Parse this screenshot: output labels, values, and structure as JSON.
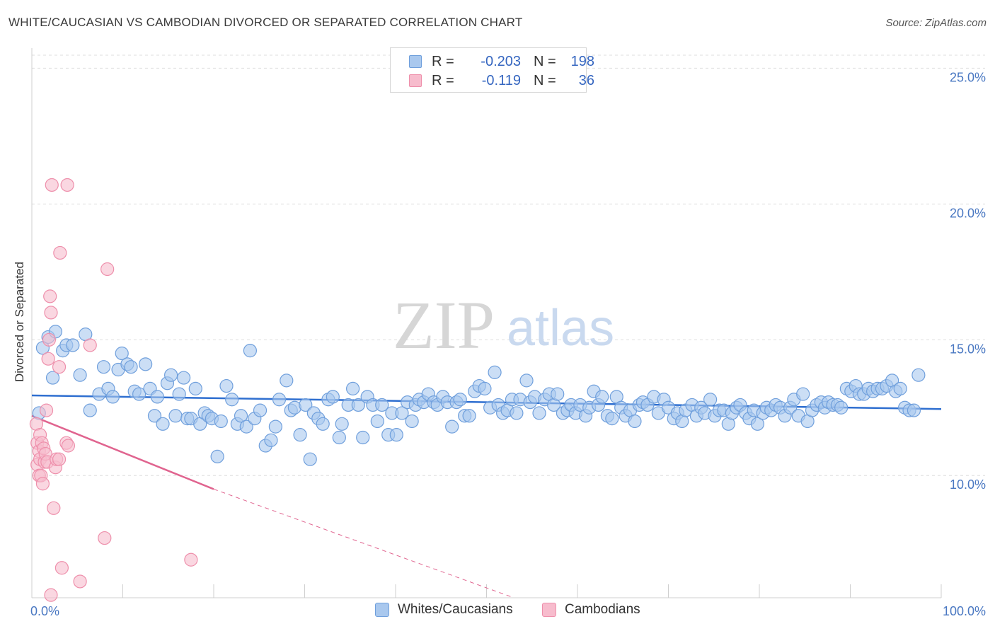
{
  "title": "WHITE/CAUCASIAN VS CAMBODIAN DIVORCED OR SEPARATED CORRELATION CHART",
  "source": "Source: ZipAtlas.com",
  "watermark": {
    "zip": "ZIP",
    "atlas": "atlas"
  },
  "colors": {
    "blue_fill": "#a9c8ee",
    "blue_stroke": "#6f9fdc",
    "blue_line": "#2f6fd0",
    "pink_fill": "#f7bccd",
    "pink_stroke": "#ee8fab",
    "pink_line": "#e0648f",
    "grid": "#dddddd",
    "tick_text": "#4a78c2"
  },
  "legend": {
    "rows": [
      {
        "r_label": "R =",
        "r_value": "-0.203",
        "n_label": "N =",
        "n_value": "198"
      },
      {
        "r_label": "R =",
        "r_value": "-0.119",
        "n_label": "N =",
        "n_value": "36"
      }
    ]
  },
  "bottom_legend": {
    "series1": "Whites/Caucasians",
    "series2": "Cambodians"
  },
  "chart_data": {
    "type": "scatter",
    "ylabel": "Divorced or Separated",
    "xlim": [
      0,
      100
    ],
    "ylim": [
      5.5,
      26.0
    ],
    "y_ticks": [
      {
        "value": 10,
        "label": "10.0%"
      },
      {
        "value": 15,
        "label": "15.0%"
      },
      {
        "value": 20,
        "label": "20.0%"
      },
      {
        "value": 25,
        "label": "25.0%"
      }
    ],
    "x_ticks": [
      {
        "value": 0,
        "label": "0.0%"
      },
      {
        "value": 100,
        "label": "100.0%"
      }
    ],
    "legend_position": "top-center",
    "series": [
      {
        "name": "Whites/Caucasians",
        "trend": {
          "x": [
            0,
            100
          ],
          "y": [
            12.95,
            12.45
          ],
          "dashed_extension": false
        },
        "points": [
          [
            0.8,
            12.3
          ],
          [
            1.2,
            14.7
          ],
          [
            1.8,
            15.1
          ],
          [
            2.3,
            13.6
          ],
          [
            2.6,
            15.3
          ],
          [
            3.4,
            14.6
          ],
          [
            3.8,
            14.8
          ],
          [
            4.5,
            14.8
          ],
          [
            5.3,
            13.7
          ],
          [
            5.9,
            15.2
          ],
          [
            6.4,
            12.4
          ],
          [
            7.4,
            13.0
          ],
          [
            7.9,
            14.0
          ],
          [
            8.4,
            13.2
          ],
          [
            8.9,
            12.9
          ],
          [
            9.5,
            13.9
          ],
          [
            9.9,
            14.5
          ],
          [
            10.5,
            14.1
          ],
          [
            10.9,
            14.0
          ],
          [
            11.3,
            13.1
          ],
          [
            11.8,
            13.0
          ],
          [
            12.5,
            14.1
          ],
          [
            13.0,
            13.2
          ],
          [
            13.5,
            12.2
          ],
          [
            13.8,
            12.9
          ],
          [
            14.4,
            11.9
          ],
          [
            14.9,
            13.4
          ],
          [
            15.3,
            13.7
          ],
          [
            15.8,
            12.2
          ],
          [
            16.2,
            13.0
          ],
          [
            16.7,
            13.6
          ],
          [
            17.1,
            12.1
          ],
          [
            17.5,
            12.1
          ],
          [
            18.0,
            13.2
          ],
          [
            18.5,
            11.9
          ],
          [
            19.0,
            12.3
          ],
          [
            19.4,
            12.2
          ],
          [
            19.8,
            12.1
          ],
          [
            20.4,
            10.7
          ],
          [
            20.8,
            12.0
          ],
          [
            21.4,
            13.3
          ],
          [
            22.0,
            12.8
          ],
          [
            22.6,
            11.9
          ],
          [
            23.0,
            12.2
          ],
          [
            23.6,
            11.8
          ],
          [
            24.0,
            14.6
          ],
          [
            24.5,
            12.1
          ],
          [
            25.1,
            12.4
          ],
          [
            25.7,
            11.1
          ],
          [
            26.3,
            11.3
          ],
          [
            26.8,
            11.8
          ],
          [
            27.2,
            12.8
          ],
          [
            28.0,
            13.5
          ],
          [
            28.5,
            12.4
          ],
          [
            28.9,
            12.5
          ],
          [
            29.5,
            11.5
          ],
          [
            30.1,
            12.6
          ],
          [
            30.6,
            10.6
          ],
          [
            31.0,
            12.3
          ],
          [
            31.5,
            12.1
          ],
          [
            32.0,
            11.9
          ],
          [
            32.6,
            12.8
          ],
          [
            33.1,
            12.9
          ],
          [
            33.8,
            11.4
          ],
          [
            34.1,
            11.9
          ],
          [
            34.8,
            12.6
          ],
          [
            35.3,
            13.2
          ],
          [
            35.9,
            12.6
          ],
          [
            36.4,
            11.4
          ],
          [
            36.9,
            12.9
          ],
          [
            37.5,
            12.6
          ],
          [
            38.0,
            12.0
          ],
          [
            38.5,
            12.6
          ],
          [
            39.2,
            11.5
          ],
          [
            39.6,
            12.3
          ],
          [
            40.1,
            11.5
          ],
          [
            40.7,
            12.3
          ],
          [
            41.3,
            12.7
          ],
          [
            41.8,
            12.0
          ],
          [
            42.2,
            12.6
          ],
          [
            42.6,
            12.8
          ],
          [
            43.1,
            12.7
          ],
          [
            43.6,
            13.0
          ],
          [
            44.2,
            12.7
          ],
          [
            44.6,
            12.6
          ],
          [
            45.2,
            12.9
          ],
          [
            45.7,
            12.7
          ],
          [
            46.2,
            11.8
          ],
          [
            46.7,
            12.7
          ],
          [
            47.1,
            12.8
          ],
          [
            47.6,
            12.2
          ],
          [
            48.1,
            12.2
          ],
          [
            48.7,
            13.1
          ],
          [
            49.2,
            13.3
          ],
          [
            49.8,
            13.2
          ],
          [
            50.4,
            12.5
          ],
          [
            50.9,
            13.8
          ],
          [
            51.3,
            12.6
          ],
          [
            51.8,
            12.3
          ],
          [
            52.3,
            12.4
          ],
          [
            52.8,
            12.8
          ],
          [
            53.3,
            12.3
          ],
          [
            53.7,
            12.8
          ],
          [
            54.4,
            13.5
          ],
          [
            54.8,
            12.7
          ],
          [
            55.3,
            12.9
          ],
          [
            55.8,
            12.3
          ],
          [
            56.4,
            12.8
          ],
          [
            56.9,
            13.0
          ],
          [
            57.4,
            12.6
          ],
          [
            57.8,
            13.0
          ],
          [
            58.4,
            12.3
          ],
          [
            58.9,
            12.4
          ],
          [
            59.3,
            12.6
          ],
          [
            59.8,
            12.3
          ],
          [
            60.3,
            12.6
          ],
          [
            60.9,
            12.2
          ],
          [
            61.3,
            12.5
          ],
          [
            61.8,
            13.1
          ],
          [
            62.3,
            12.6
          ],
          [
            62.7,
            12.9
          ],
          [
            63.3,
            12.2
          ],
          [
            63.8,
            12.1
          ],
          [
            64.3,
            12.9
          ],
          [
            64.8,
            12.5
          ],
          [
            65.3,
            12.2
          ],
          [
            65.8,
            12.4
          ],
          [
            66.3,
            12.0
          ],
          [
            66.8,
            12.6
          ],
          [
            67.2,
            12.7
          ],
          [
            67.7,
            12.6
          ],
          [
            68.4,
            12.9
          ],
          [
            68.9,
            12.3
          ],
          [
            69.5,
            12.8
          ],
          [
            70.0,
            12.5
          ],
          [
            70.6,
            12.1
          ],
          [
            71.0,
            12.3
          ],
          [
            71.5,
            12.0
          ],
          [
            71.9,
            12.4
          ],
          [
            72.6,
            12.6
          ],
          [
            73.1,
            12.2
          ],
          [
            73.6,
            12.5
          ],
          [
            74.0,
            12.3
          ],
          [
            74.6,
            12.8
          ],
          [
            75.1,
            12.2
          ],
          [
            75.6,
            12.4
          ],
          [
            76.1,
            12.4
          ],
          [
            76.6,
            11.9
          ],
          [
            77.0,
            12.3
          ],
          [
            77.5,
            12.5
          ],
          [
            77.9,
            12.6
          ],
          [
            78.5,
            12.3
          ],
          [
            78.9,
            12.1
          ],
          [
            79.4,
            12.4
          ],
          [
            79.8,
            11.9
          ],
          [
            80.4,
            12.3
          ],
          [
            80.8,
            12.5
          ],
          [
            81.3,
            12.4
          ],
          [
            81.8,
            12.6
          ],
          [
            82.3,
            12.5
          ],
          [
            82.8,
            12.2
          ],
          [
            83.4,
            12.5
          ],
          [
            83.8,
            12.8
          ],
          [
            84.3,
            12.2
          ],
          [
            84.8,
            13.0
          ],
          [
            85.3,
            12.0
          ],
          [
            85.8,
            12.4
          ],
          [
            86.3,
            12.6
          ],
          [
            86.8,
            12.7
          ],
          [
            87.2,
            12.5
          ],
          [
            87.6,
            12.7
          ],
          [
            88.1,
            12.6
          ],
          [
            88.6,
            12.6
          ],
          [
            89.0,
            12.5
          ],
          [
            89.6,
            13.2
          ],
          [
            90.1,
            13.1
          ],
          [
            90.6,
            13.3
          ],
          [
            91.0,
            13.0
          ],
          [
            91.5,
            13.0
          ],
          [
            92.0,
            13.2
          ],
          [
            92.5,
            13.1
          ],
          [
            93.0,
            13.2
          ],
          [
            93.5,
            13.2
          ],
          [
            94.0,
            13.3
          ],
          [
            94.6,
            13.5
          ],
          [
            95.0,
            13.1
          ],
          [
            95.5,
            13.2
          ],
          [
            96.0,
            12.5
          ],
          [
            96.5,
            12.4
          ],
          [
            97.0,
            12.4
          ],
          [
            97.5,
            13.7
          ]
        ]
      },
      {
        "name": "Cambodians",
        "trend": {
          "x": [
            0,
            20
          ],
          "y": [
            12.2,
            9.5
          ],
          "dashed_to": {
            "x": 53,
            "y": 5.5
          }
        },
        "points": [
          [
            0.5,
            11.9
          ],
          [
            0.6,
            11.2
          ],
          [
            0.6,
            10.4
          ],
          [
            0.8,
            10.9
          ],
          [
            0.8,
            10.0
          ],
          [
            0.9,
            11.5
          ],
          [
            0.9,
            10.6
          ],
          [
            1.0,
            10.0
          ],
          [
            1.1,
            11.2
          ],
          [
            1.2,
            9.7
          ],
          [
            1.3,
            11.0
          ],
          [
            1.4,
            10.5
          ],
          [
            1.5,
            10.8
          ],
          [
            1.6,
            12.4
          ],
          [
            1.7,
            10.5
          ],
          [
            1.8,
            14.3
          ],
          [
            1.9,
            15.0
          ],
          [
            2.0,
            16.6
          ],
          [
            2.1,
            16.0
          ],
          [
            2.1,
            5.6
          ],
          [
            2.2,
            20.7
          ],
          [
            2.4,
            8.8
          ],
          [
            2.6,
            10.3
          ],
          [
            2.7,
            10.6
          ],
          [
            3.0,
            14.0
          ],
          [
            3.0,
            10.6
          ],
          [
            3.1,
            18.2
          ],
          [
            3.3,
            6.6
          ],
          [
            3.8,
            11.2
          ],
          [
            3.9,
            20.7
          ],
          [
            4.0,
            11.1
          ],
          [
            5.3,
            6.1
          ],
          [
            6.4,
            14.8
          ],
          [
            8.0,
            7.7
          ],
          [
            8.3,
            17.6
          ],
          [
            17.5,
            6.9
          ]
        ]
      }
    ]
  }
}
